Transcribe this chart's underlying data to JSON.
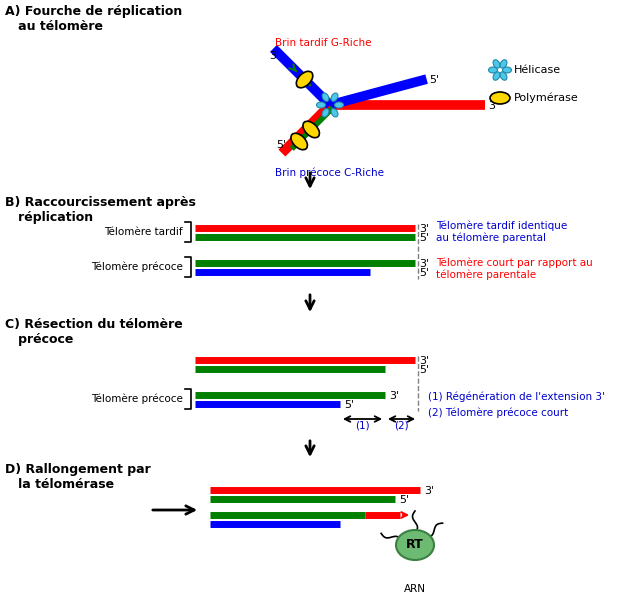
{
  "title_A": "A) Fourche de réplication\n   au télomère",
  "title_B": "B) Raccourcissement après\n   réplication",
  "title_C": "C) Résection du télomère\n   précoce",
  "title_D": "D) Rallongement par\n   la télomérase",
  "label_brin_tardif": "Brin tardif G-Riche",
  "label_brin_precoce": "Brin précoce C-Riche",
  "label_helicase": "Hélicase",
  "label_polymerase": "Polymérase",
  "label_telomere_tardif": "Télomère tardif",
  "label_telomere_precoce": "Télomère précoce",
  "label_telomere_tardif_note": "Télomère tardif identique\nau télomère parental",
  "label_telomere_court_note": "Télomère court par rapport au\ntélomère parentale",
  "label_regeneration": "(1) Régénération de l'extension 3'",
  "label_telomere_court": "(2) Télomère précoce court",
  "color_red": "#FF0000",
  "color_green": "#008000",
  "color_blue": "#0000FF",
  "color_yellow": "#FFD700",
  "color_cyan": "#4DC8E8",
  "color_black": "#000000",
  "color_blue_label": "#0000CD",
  "color_red_label": "#FF0000",
  "color_telomerase": "#6DBB73",
  "bg_color": "#FFFFFF"
}
